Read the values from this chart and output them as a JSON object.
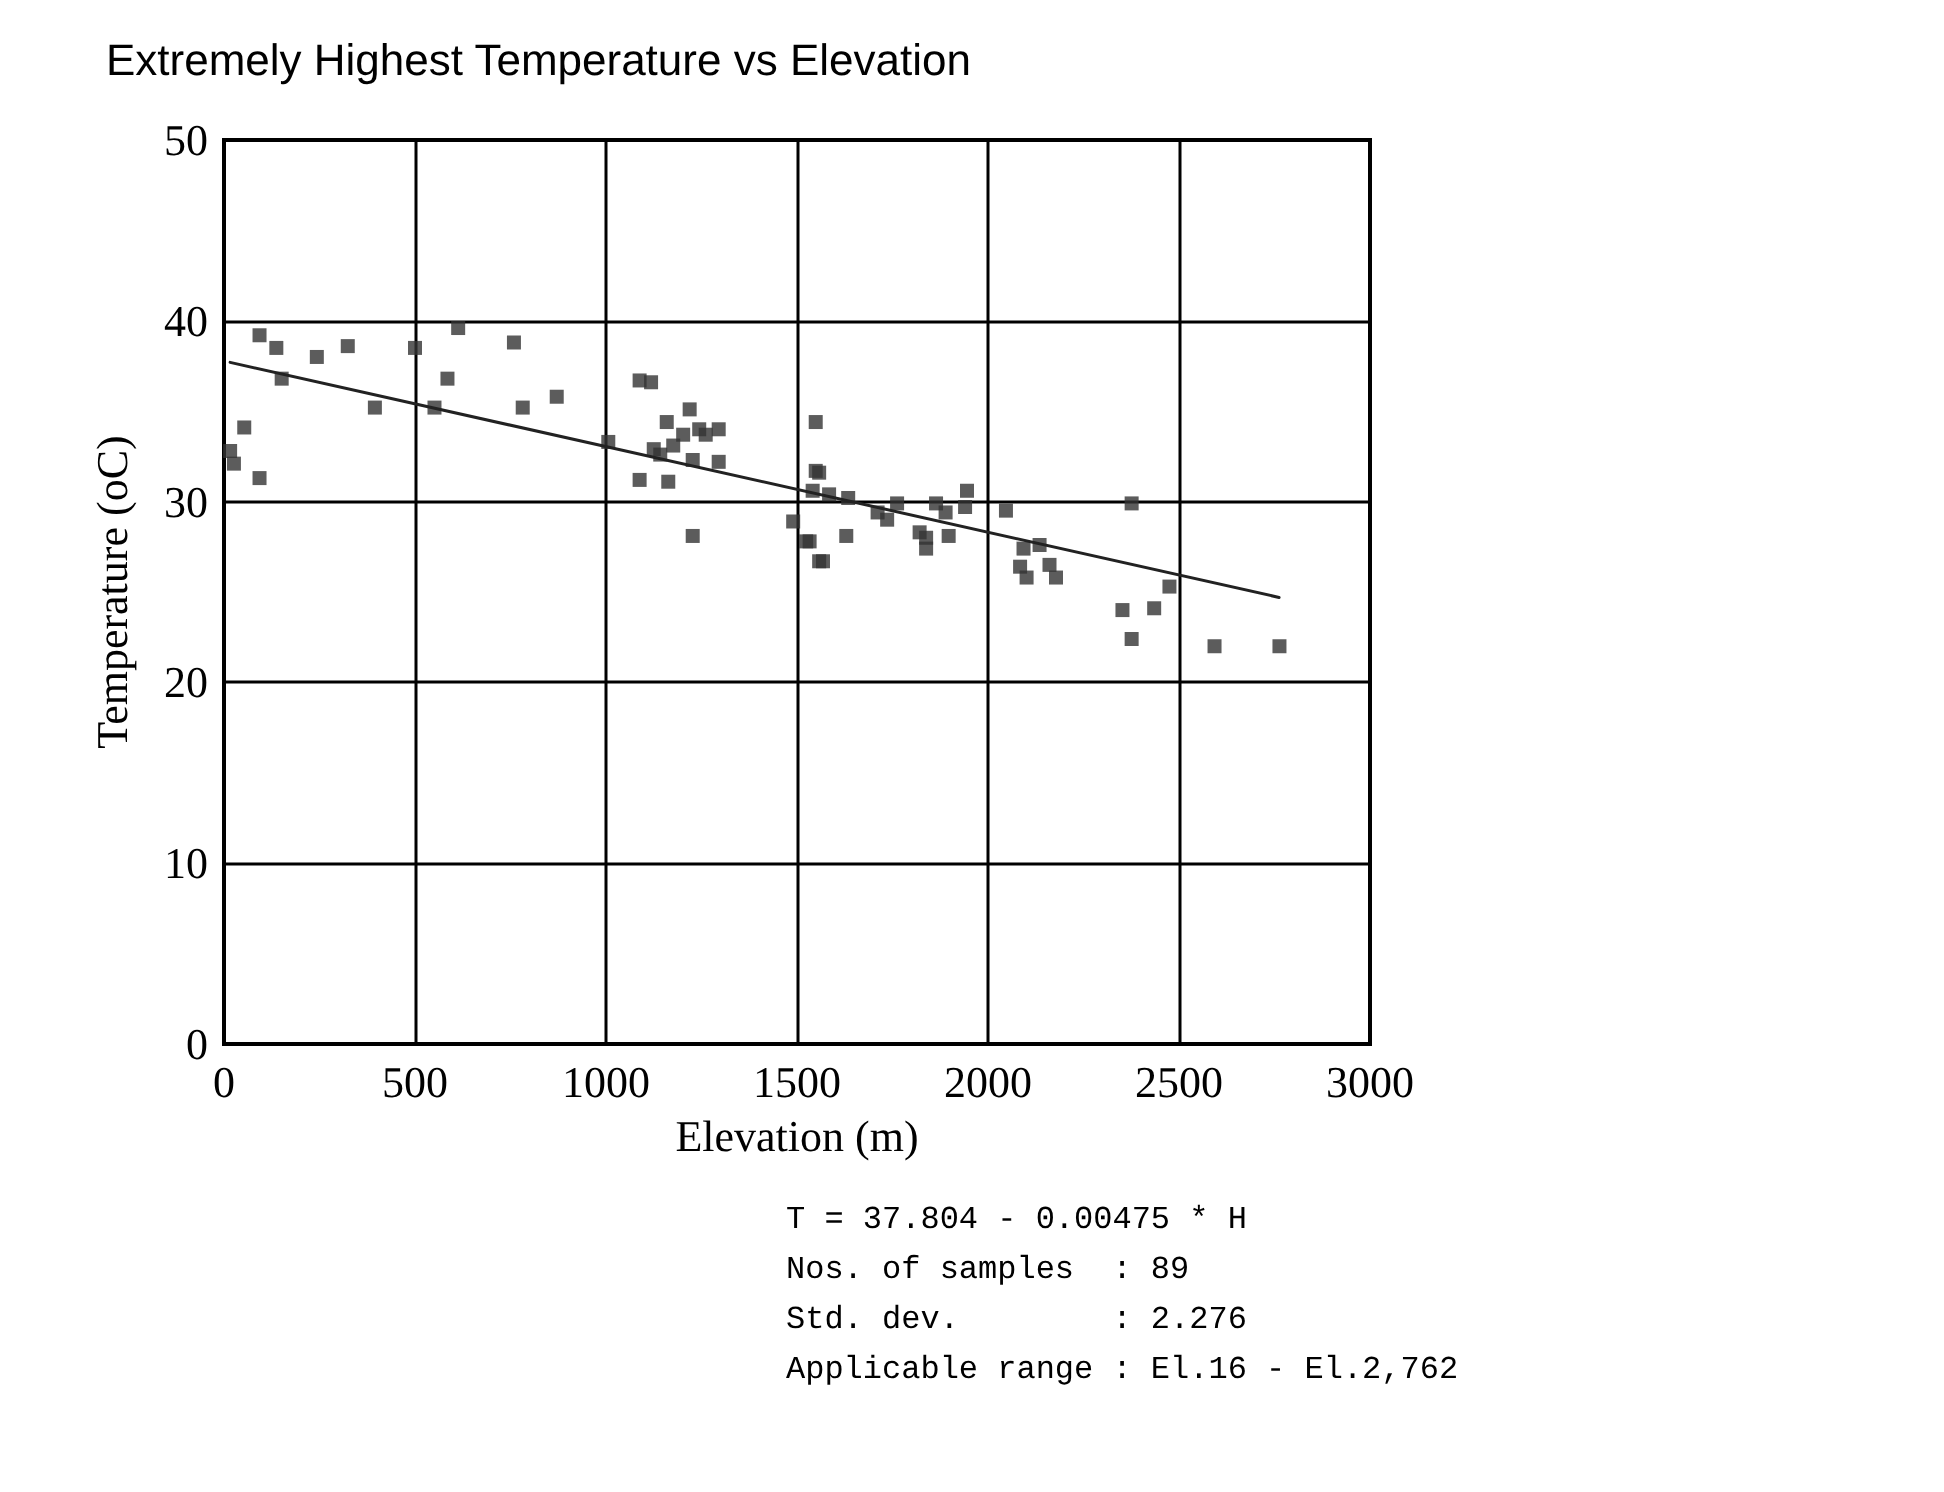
{
  "chart_data": {
    "type": "scatter",
    "title": "Extremely Highest Temperature vs Elevation",
    "xlabel": "Elevation (m)",
    "ylabel": "Temperature (oC)",
    "xlim": [
      0,
      3000
    ],
    "xticks": [
      0,
      500,
      1000,
      1500,
      2000,
      2500,
      3000
    ],
    "ylim": [
      0,
      50
    ],
    "yticks": [
      0,
      10,
      20,
      30,
      40,
      50
    ],
    "grid": true,
    "marker": "square",
    "series": [
      {
        "color": "#333333",
        "x": [
          16,
          26,
          53,
          93,
          93,
          137,
          151,
          243,
          324,
          395,
          500,
          551,
          585,
          613,
          759,
          782,
          871,
          1006,
          1088,
          1118,
          1088,
          1125,
          1142,
          1159,
          1163,
          1176,
          1202,
          1219,
          1227,
          1227,
          1244,
          1261,
          1295,
          1295,
          1490,
          1524,
          1533,
          1541,
          1549,
          1549,
          1558,
          1558,
          1568,
          1584,
          1629,
          1634,
          1711,
          1736,
          1762,
          1821,
          1838,
          1838,
          1864,
          1889,
          1897,
          1940,
          1945,
          2047,
          2084,
          2093,
          2101,
          2135,
          2161,
          2178,
          2352,
          2376,
          2376,
          2435,
          2475,
          2593,
          2763
        ],
        "values": [
          32.8,
          32.1,
          34.1,
          39.2,
          31.3,
          38.5,
          36.8,
          38.0,
          38.6,
          35.2,
          38.5,
          35.2,
          36.8,
          39.6,
          38.8,
          35.2,
          35.8,
          33.3,
          36.7,
          36.6,
          31.2,
          32.9,
          32.6,
          34.4,
          31.1,
          33.1,
          33.7,
          35.1,
          32.3,
          28.1,
          34.0,
          33.7,
          34.0,
          32.2,
          28.9,
          27.8,
          27.8,
          30.6,
          34.4,
          31.7,
          31.6,
          26.7,
          26.7,
          30.4,
          28.1,
          30.2,
          29.4,
          29.0,
          29.9,
          28.3,
          28.0,
          27.4,
          29.9,
          29.4,
          28.1,
          29.7,
          30.6,
          29.5,
          26.4,
          27.4,
          25.8,
          27.6,
          26.5,
          25.8,
          24.0,
          29.9,
          22.4,
          24.1,
          25.3,
          22.0,
          22.0
        ]
      },
      {
        "type": "line",
        "color": "#222222",
        "marker": "none",
        "x": [
          16,
          2762
        ],
        "values": [
          37.7,
          24.7
        ]
      }
    ],
    "annotations": [
      "T = 37.804 - 0.00475 * H",
      "Nos. of samples  : 89",
      "Std. dev.        : 2.276",
      "Applicable range : El.16 - El.2,762"
    ]
  }
}
